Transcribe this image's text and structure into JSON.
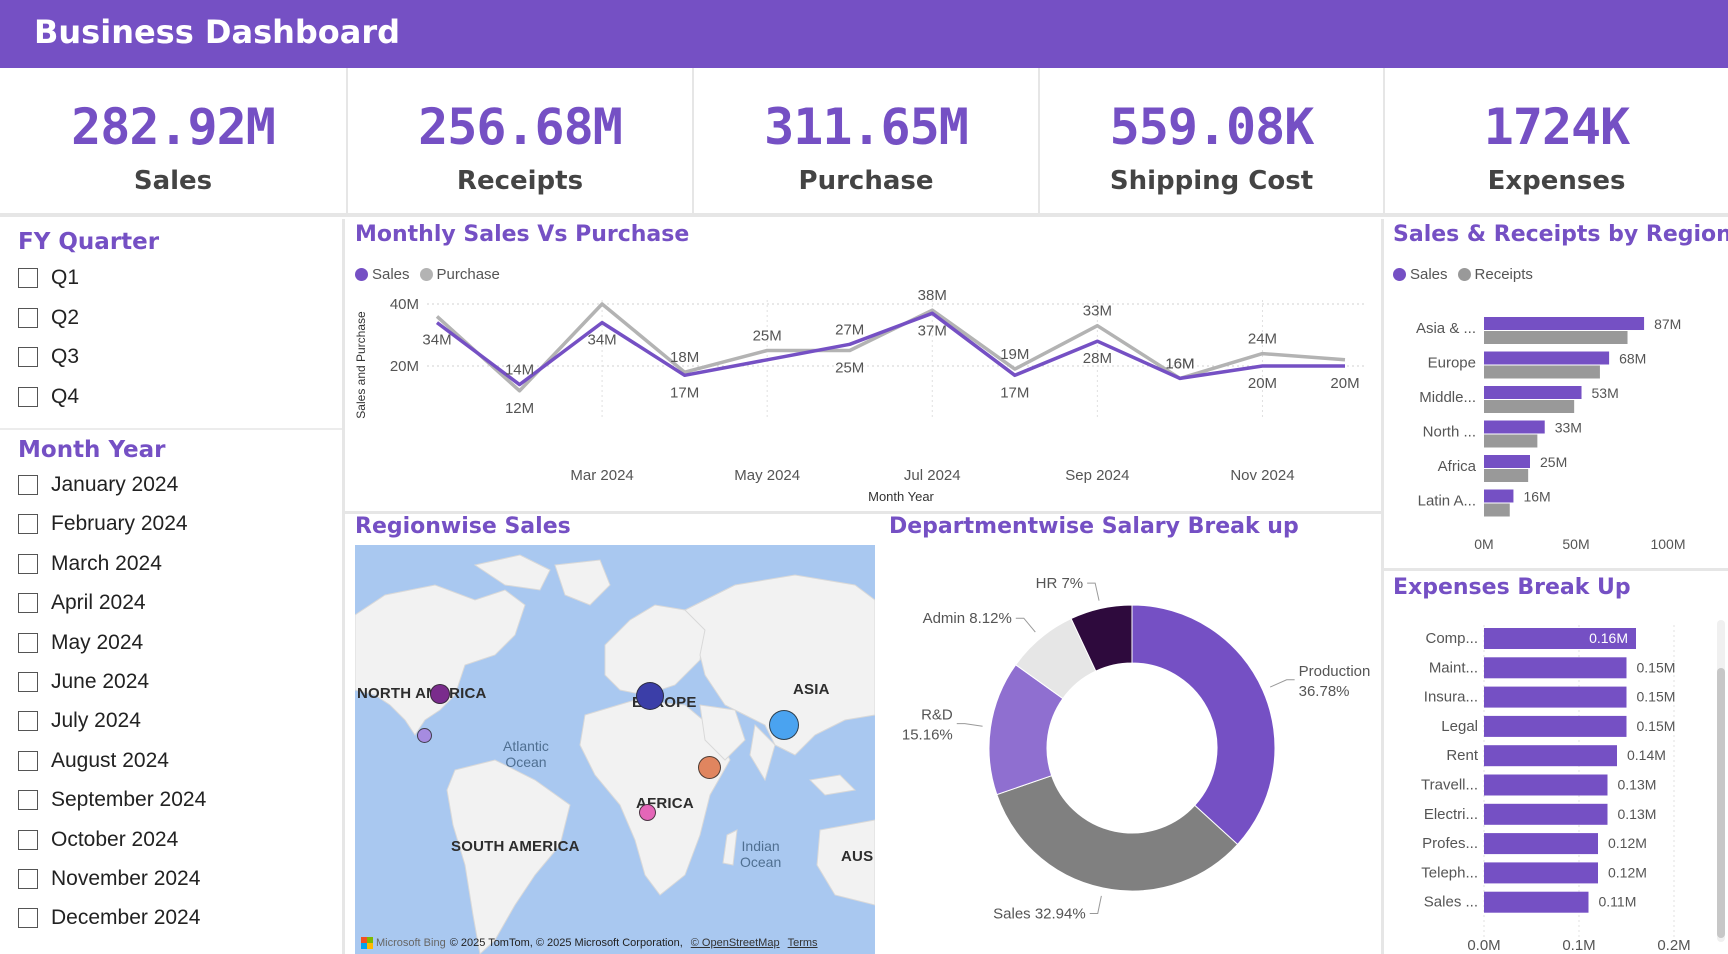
{
  "app": {
    "title": "Business Dashboard"
  },
  "kpis": [
    {
      "value": "282.92M",
      "label": "Sales"
    },
    {
      "value": "256.68M",
      "label": "Receipts"
    },
    {
      "value": "311.65M",
      "label": "Purchase"
    },
    {
      "value": "559.08K",
      "label": "Shipping Cost"
    },
    {
      "value": "1724K",
      "label": "Expenses"
    }
  ],
  "slicers": {
    "quarter": {
      "title": "FY Quarter",
      "options": [
        "Q1",
        "Q2",
        "Q3",
        "Q4"
      ]
    },
    "month": {
      "title": "Month Year",
      "options": [
        "January 2024",
        "February 2024",
        "March 2024",
        "April 2024",
        "May 2024",
        "June 2024",
        "July 2024",
        "August 2024",
        "September 2024",
        "October 2024",
        "November 2024",
        "December 2024"
      ]
    }
  },
  "colors": {
    "accent": "#7550C4",
    "gray": "#999999",
    "light_gray": "#b3b3b3"
  },
  "chart_data": [
    {
      "id": "monthly",
      "type": "line",
      "title": "Monthly Sales Vs Purchase",
      "xlabel": "Month Year",
      "ylabel": "Sales and Purchase",
      "x": [
        "Jan 2024",
        "Feb 2024",
        "Mar 2024",
        "Apr 2024",
        "May 2024",
        "Jun 2024",
        "Jul 2024",
        "Aug 2024",
        "Sep 2024",
        "Oct 2024",
        "Nov 2024",
        "Dec 2024"
      ],
      "x_ticks": [
        "Mar 2024",
        "May 2024",
        "Jul 2024",
        "Sep 2024",
        "Nov 2024"
      ],
      "y_ticks": [
        "20M",
        "40M"
      ],
      "ylim": [
        0,
        40
      ],
      "series": [
        {
          "name": "Sales",
          "color": "#7550C4",
          "values": [
            34,
            14,
            34,
            17,
            22,
            27,
            37,
            17,
            28,
            16,
            20,
            20
          ],
          "labels": [
            "34M",
            "14M",
            "34M",
            "17M",
            "",
            "27M",
            "37M",
            "17M",
            "28M",
            "16M",
            "20M",
            "20M"
          ]
        },
        {
          "name": "Purchase",
          "color": "#b3b3b3",
          "values": [
            36,
            12,
            40,
            18,
            25,
            25,
            38,
            19,
            33,
            16,
            24,
            22
          ],
          "labels": [
            "",
            "12M",
            "",
            "18M",
            "25M",
            "25M",
            "38M",
            "19M",
            "33M",
            "16M",
            "24M",
            ""
          ]
        }
      ]
    },
    {
      "id": "region",
      "type": "bar",
      "title": "Sales & Receipts by Region",
      "categories": [
        "Asia & ...",
        "Europe",
        "Middle...",
        "North ...",
        "Africa",
        "Latin A..."
      ],
      "x_ticks": [
        "0M",
        "50M",
        "100M"
      ],
      "xlim": [
        0,
        100
      ],
      "series": [
        {
          "name": "Sales",
          "color": "#7550C4",
          "values": [
            87,
            68,
            53,
            33,
            25,
            16
          ],
          "labels": [
            "87M",
            "68M",
            "53M",
            "33M",
            "25M",
            "16M"
          ]
        },
        {
          "name": "Receipts",
          "color": "#999999",
          "values": [
            78,
            63,
            49,
            29,
            24,
            14
          ]
        }
      ]
    },
    {
      "id": "salary",
      "type": "pie",
      "title": "Departmentwise Salary Break up",
      "slices": [
        {
          "label": "Production",
          "value": 36.78,
          "display": "36.78%",
          "color": "#7550C4"
        },
        {
          "label": "Sales",
          "value": 32.94,
          "display": "32.94%",
          "color": "#808080"
        },
        {
          "label": "R&D",
          "value": 15.16,
          "display": "15.16%",
          "color": "#8f6fd0"
        },
        {
          "label": "Admin",
          "value": 8.12,
          "display": "8.12%",
          "color": "#e6e6e6"
        },
        {
          "label": "HR",
          "value": 7.0,
          "display": "7%",
          "color": "#2e0a3d"
        }
      ]
    },
    {
      "id": "expenses",
      "type": "bar",
      "title": "Expenses Break Up",
      "categories": [
        "Comp...",
        "Maint...",
        "Insura...",
        "Legal",
        "Rent",
        "Travell...",
        "Electri...",
        "Profes...",
        "Teleph...",
        "Sales ..."
      ],
      "values": [
        0.16,
        0.15,
        0.15,
        0.15,
        0.14,
        0.13,
        0.13,
        0.12,
        0.12,
        0.11
      ],
      "labels": [
        "0.16M",
        "0.15M",
        "0.15M",
        "0.15M",
        "0.14M",
        "0.13M",
        "0.13M",
        "0.12M",
        "0.12M",
        "0.11M"
      ],
      "x_ticks": [
        "0.0M",
        "0.1M",
        "0.2M"
      ],
      "xlim": [
        0,
        0.2
      ]
    }
  ],
  "map": {
    "title": "Regionwise Sales",
    "labels": {
      "north_america": "NORTH AMERICA",
      "europe": "EUROPE",
      "asia": "ASIA",
      "africa": "AFRICA",
      "south_america": "SOUTH AMERICA",
      "aus": "AUS"
    },
    "oceans": {
      "atlantic_1": "Atlantic",
      "atlantic_2": "Ocean",
      "indian_1": "Indian",
      "indian_2": "Ocean"
    },
    "attribution": {
      "brand": "Microsoft Bing",
      "credits": "© 2025 TomTom, © 2025 Microsoft Corporation,",
      "osm": "© OpenStreetMap",
      "terms": "Terms"
    }
  }
}
